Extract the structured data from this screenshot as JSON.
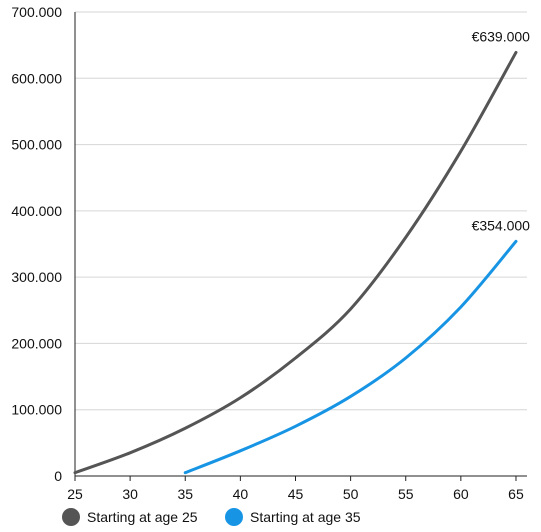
{
  "chart_data": {
    "type": "line",
    "title": "",
    "xlabel": "",
    "ylabel": "",
    "xlim": [
      25,
      66
    ],
    "ylim": [
      0,
      700000
    ],
    "x_ticks": [
      25,
      30,
      35,
      40,
      45,
      50,
      55,
      60,
      65
    ],
    "x_tick_labels": [
      "25",
      "30",
      "35",
      "40",
      "45",
      "50",
      "55",
      "60",
      "65"
    ],
    "y_ticks": [
      0,
      100000,
      200000,
      300000,
      400000,
      500000,
      600000,
      700000
    ],
    "y_tick_labels": [
      "0",
      "100.000",
      "200.000",
      "300.000",
      "400.000",
      "500.000",
      "600.000",
      "700.000"
    ],
    "grid": "horizontal",
    "legend_position": "bottom",
    "series": [
      {
        "name": "Starting at age 25",
        "color": "#555555",
        "end_label": "€639.000",
        "x": [
          25,
          30,
          35,
          40,
          45,
          50,
          55,
          60,
          65
        ],
        "y": [
          5000,
          35000,
          72000,
          118000,
          178000,
          252000,
          360000,
          490000,
          639000
        ]
      },
      {
        "name": "Starting at age 35",
        "color": "#1795e4",
        "end_label": "€354.000",
        "x": [
          35,
          40,
          45,
          50,
          55,
          60,
          65
        ],
        "y": [
          5000,
          38000,
          75000,
          120000,
          178000,
          255000,
          354000
        ]
      }
    ]
  }
}
